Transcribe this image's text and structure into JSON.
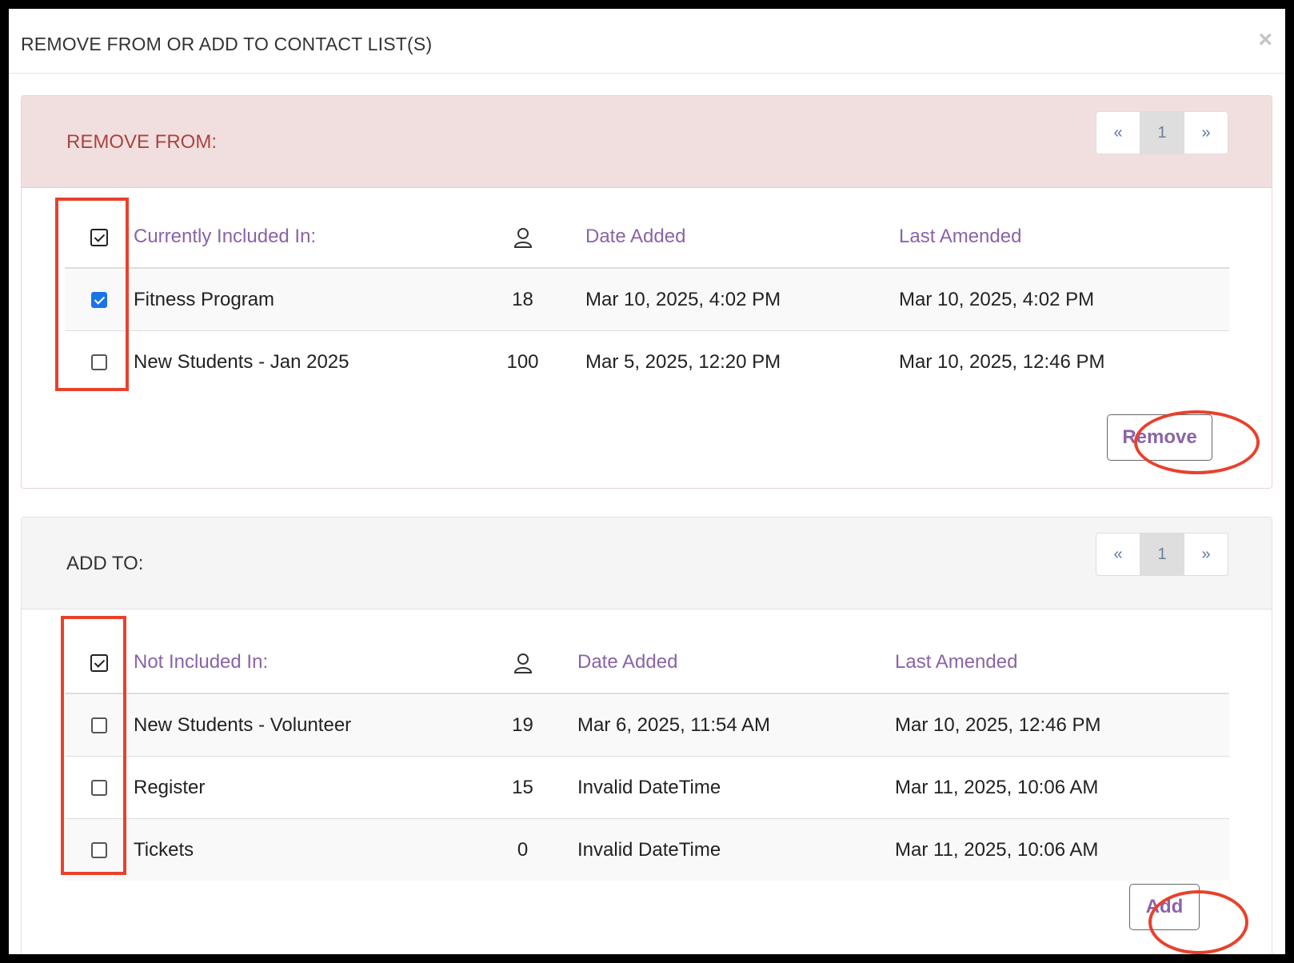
{
  "modal": {
    "title": "REMOVE FROM OR ADD TO CONTACT LIST(S)",
    "close_label": "×"
  },
  "remove_section": {
    "title": "REMOVE FROM:",
    "pager": {
      "prev": "«",
      "page": "1",
      "next": "»"
    },
    "columns": {
      "name": "Currently Included In:",
      "date_added": "Date Added",
      "last_amended": "Last Amended"
    },
    "rows": [
      {
        "name": "Fitness Program",
        "count": "18",
        "date_added": "Mar 10, 2025, 4:02 PM",
        "last_amended": "Mar 10, 2025, 4:02 PM",
        "checked": true
      },
      {
        "name": "New Students - Jan 2025",
        "count": "100",
        "date_added": "Mar 5, 2025, 12:20 PM",
        "last_amended": "Mar 10, 2025, 12:46 PM",
        "checked": false
      }
    ],
    "button_label": "Remove"
  },
  "add_section": {
    "title": "ADD TO:",
    "pager": {
      "prev": "«",
      "page": "1",
      "next": "»"
    },
    "columns": {
      "name": "Not Included In:",
      "date_added": "Date Added",
      "last_amended": "Last Amended"
    },
    "rows": [
      {
        "name": "New Students - Volunteer",
        "count": "19",
        "date_added": "Mar 6, 2025, 11:54 AM",
        "last_amended": "Mar 10, 2025, 12:46 PM",
        "checked": false
      },
      {
        "name": "Register",
        "count": "15",
        "date_added": "Invalid DateTime",
        "last_amended": "Mar 11, 2025, 10:06 AM",
        "checked": false
      },
      {
        "name": "Tickets",
        "count": "0",
        "date_added": "Invalid DateTime",
        "last_amended": "Mar 11, 2025, 10:06 AM",
        "checked": false
      }
    ],
    "button_label": "Add"
  },
  "colors": {
    "accent_purple": "#8a63a8",
    "danger_text": "#a94442",
    "annotation_red": "#e8412c",
    "checkbox_blue": "#1a73e8"
  }
}
